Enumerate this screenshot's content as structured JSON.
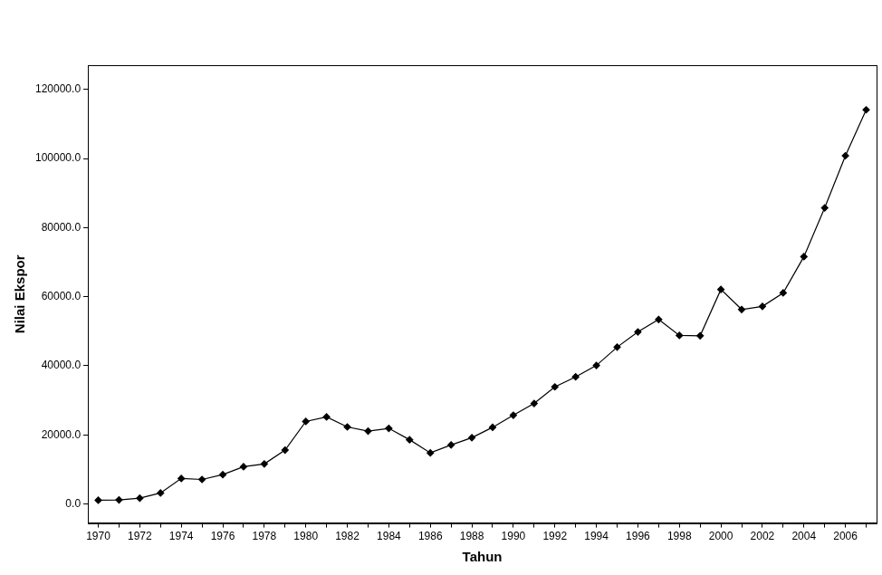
{
  "chart_data": {
    "type": "line",
    "x_label": "Tahun",
    "y_label": "Nilai Ekspor",
    "categories": [
      "1970",
      null,
      "1972",
      null,
      "1974",
      null,
      "1976",
      null,
      "1978",
      null,
      "1980",
      null,
      "1982",
      null,
      "1984",
      null,
      "1986",
      null,
      "1988",
      null,
      "1990",
      null,
      "1992",
      null,
      "1994",
      null,
      "1996",
      null,
      "1998",
      null,
      "2000",
      null,
      "2002",
      null,
      "2004",
      null,
      "2006",
      null
    ],
    "values": [
      1100,
      1200,
      1700,
      3200,
      7400,
      7100,
      8500,
      10800,
      11600,
      15600,
      23900,
      25200,
      22300,
      21100,
      21900,
      18600,
      14800,
      17100,
      19200,
      22200,
      25700,
      29100,
      33900,
      36800,
      40100,
      45400,
      49800,
      53400,
      48800,
      48700,
      62100,
      56300,
      57200,
      61100,
      71600,
      85700,
      100800,
      114100
    ],
    "color": "#000000",
    "marker": "diamond",
    "line_style": "solid",
    "ylim": [
      -5500,
      127000
    ],
    "yticks": [
      {
        "value": 0,
        "label": "0.0"
      },
      {
        "value": 20000,
        "label": "20000.0"
      },
      {
        "value": 40000,
        "label": "40000.0"
      },
      {
        "value": 60000,
        "label": "60000.0"
      },
      {
        "value": 80000,
        "label": "80000.0"
      },
      {
        "value": 100000,
        "label": "100000.0"
      },
      {
        "value": 120000,
        "label": "120000.0"
      }
    ],
    "grid": false
  }
}
